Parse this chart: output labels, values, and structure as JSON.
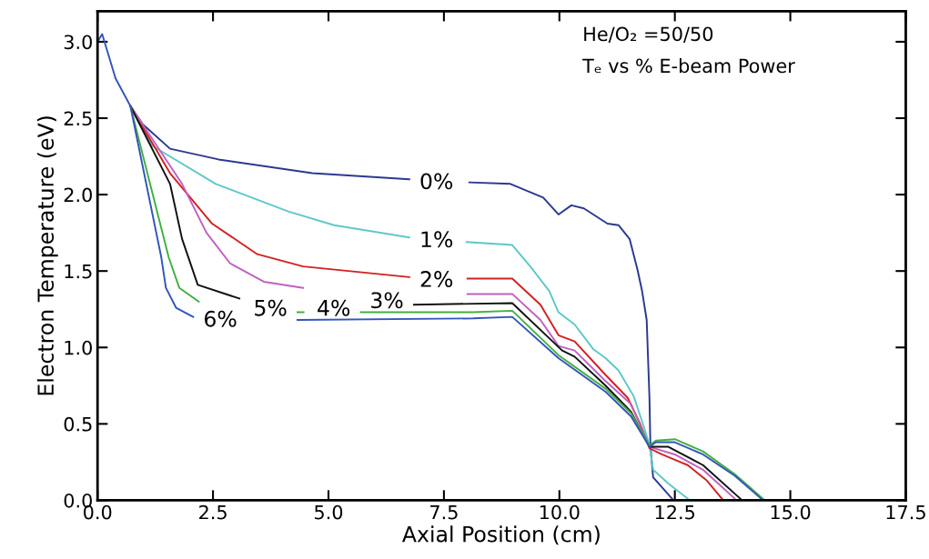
{
  "chart_data": {
    "type": "line",
    "xlabel": "Axial Position (cm)",
    "ylabel": "Electron Temperature (eV)",
    "xlim": [
      0,
      17.5
    ],
    "ylim": [
      0,
      3.2
    ],
    "xticks": [
      {
        "value": 0,
        "label": "0.0"
      },
      {
        "value": 2.5,
        "label": "2.5"
      },
      {
        "value": 5,
        "label": "5.0"
      },
      {
        "value": 7.5,
        "label": "7.5"
      },
      {
        "value": 10,
        "label": "10.0"
      },
      {
        "value": 12.5,
        "label": "12.5"
      },
      {
        "value": 15,
        "label": "15.0"
      },
      {
        "value": 17.5,
        "label": "17.5"
      }
    ],
    "yticks": [
      {
        "value": 0,
        "label": "0.0"
      },
      {
        "value": 0.5,
        "label": "0.5"
      },
      {
        "value": 1,
        "label": "1.0"
      },
      {
        "value": 1.5,
        "label": "1.5"
      },
      {
        "value": 2,
        "label": "2.0"
      },
      {
        "value": 2.5,
        "label": "2.5"
      },
      {
        "value": 3,
        "label": "3.0"
      }
    ],
    "grid": false,
    "marker": "none",
    "line_style": "solid",
    "series": [
      {
        "color": "#2b3990",
        "x": [
          0.71,
          0.98,
          1.57,
          2.62,
          4.65,
          6.75,
          6.9,
          8.05,
          8.94,
          9.65,
          9.98,
          10.26,
          10.53,
          11.04,
          11.28,
          11.52,
          11.69,
          11.79,
          11.89,
          11.95,
          11.97,
          12.03,
          12.44
        ],
        "values": [
          2.58,
          2.46,
          2.3,
          2.23,
          2.14,
          2.1,
          null,
          2.08,
          2.07,
          1.98,
          1.87,
          1.93,
          1.91,
          1.81,
          1.8,
          1.71,
          1.51,
          1.37,
          1.18,
          0.67,
          0.36,
          0.15,
          0.01
        ]
      },
      {
        "color": "#5ec8c8",
        "x": [
          0.71,
          1.18,
          2.56,
          4.13,
          5.12,
          6.75,
          6.9,
          7.99,
          8.98,
          9.37,
          9.78,
          9.98,
          10.33,
          10.73,
          11.0,
          11.28,
          11.61,
          11.83,
          11.95,
          12.03,
          12.36,
          12.78
        ],
        "values": [
          2.58,
          2.32,
          2.07,
          1.89,
          1.8,
          1.72,
          null,
          1.69,
          1.67,
          1.53,
          1.37,
          1.23,
          1.15,
          0.99,
          0.93,
          0.85,
          0.68,
          0.48,
          0.36,
          0.2,
          0.11,
          0.01
        ]
      },
      {
        "color": "#d42020",
        "x": [
          0.71,
          1.57,
          2.48,
          3.46,
          4.45,
          6.75,
          6.9,
          8.01,
          8.98,
          9.59,
          9.98,
          10.33,
          11.0,
          11.48,
          11.75,
          11.95,
          12.22,
          12.78,
          13.19,
          13.52
        ],
        "values": [
          2.58,
          2.14,
          1.81,
          1.61,
          1.53,
          1.46,
          null,
          1.45,
          1.45,
          1.28,
          1.08,
          1.04,
          0.82,
          0.67,
          0.5,
          0.34,
          0.3,
          0.23,
          0.13,
          0.01
        ]
      },
      {
        "color": "#c060c0",
        "x": [
          0.71,
          1.83,
          2.36,
          2.87,
          3.6,
          4.45,
          6.0,
          8.01,
          8.98,
          9.59,
          9.98,
          10.33,
          11.0,
          11.55,
          11.95,
          12.5,
          13.11,
          13.8
        ],
        "values": [
          2.58,
          2.07,
          1.75,
          1.55,
          1.43,
          1.39,
          null,
          1.35,
          1.35,
          1.18,
          1.01,
          0.98,
          0.78,
          0.63,
          0.35,
          0.3,
          0.2,
          0.01
        ]
      },
      {
        "color": "#111111",
        "x": [
          0.71,
          1.57,
          1.83,
          2.17,
          3.07,
          5.0,
          6.85,
          8.98,
          9.92,
          10.06,
          10.33,
          11.0,
          11.55,
          11.95,
          12.36,
          13.11,
          13.92
        ],
        "values": [
          2.58,
          2.07,
          1.71,
          1.41,
          1.32,
          null,
          1.28,
          1.29,
          1.02,
          0.98,
          0.94,
          0.75,
          0.58,
          0.35,
          0.35,
          0.23,
          0.01
        ]
      },
      {
        "color": "#40b040",
        "x": [
          0.71,
          1.54,
          1.77,
          2.19,
          3.5,
          4.33,
          4.46,
          5.0,
          5.7,
          8.13,
          8.98,
          9.98,
          11.0,
          11.55,
          11.95,
          12.09,
          12.5,
          13.11,
          13.8,
          14.41
        ],
        "values": [
          2.58,
          1.59,
          1.39,
          1.3,
          null,
          1.23,
          1.23,
          null,
          1.23,
          1.23,
          1.24,
          0.95,
          0.73,
          0.57,
          0.36,
          0.39,
          0.4,
          0.32,
          0.17,
          0.01
        ]
      },
      {
        "color": "#3355bb",
        "x": [
          0,
          0.1,
          0.39,
          0.71,
          1.38,
          1.48,
          1.7,
          2.07,
          3.5,
          4.33,
          8.13,
          8.98,
          9.98,
          11.0,
          11.55,
          11.95,
          12.09,
          12.5,
          13.11,
          13.8,
          14.37
        ],
        "values": [
          3.0,
          3.05,
          2.76,
          2.58,
          1.59,
          1.39,
          1.26,
          1.2,
          null,
          1.18,
          1.19,
          1.2,
          0.93,
          0.71,
          0.55,
          0.35,
          0.38,
          0.38,
          0.3,
          0.16,
          0.01
        ]
      }
    ],
    "annotations": [
      "He/O₂ =50/50",
      "Tₑ vs % E-beam Power",
      {
        "text": "0%",
        "x": 6.75,
        "y": 2.1
      },
      {
        "text": "1%",
        "x": 6.75,
        "y": 1.72
      },
      {
        "text": "2%",
        "x": 6.75,
        "y": 1.46
      },
      {
        "text": "3%",
        "x": 6.85,
        "y": 1.28
      },
      {
        "text": "4%",
        "x": 5.7,
        "y": 1.23
      },
      {
        "text": "5%",
        "x": 4.33,
        "y": 1.23
      },
      {
        "text": "6%",
        "x": 2.07,
        "y": 1.2
      }
    ]
  }
}
